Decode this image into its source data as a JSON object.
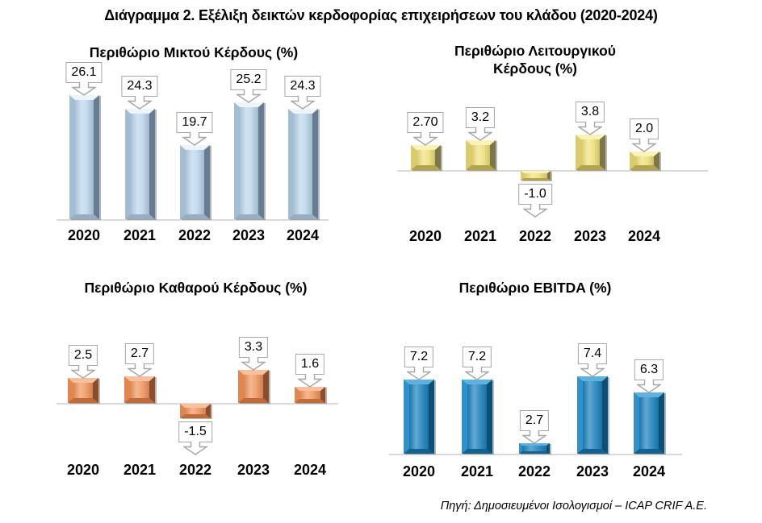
{
  "page": {
    "title": "Διάγραμμα 2. Εξέλιξη δεικτών κερδοφορίας επιχειρήσεων του κλάδου (2020-2024)",
    "source": "Πηγή: Δημοσιευμένοι Ισολογισμοί – ICAP CRIF A.E."
  },
  "chart_data": [
    {
      "id": "gross-profit-margin",
      "type": "bar",
      "title": "Περιθώριο Μικτού Κέρδους (%)",
      "categories": [
        "2020",
        "2021",
        "2022",
        "2023",
        "2024"
      ],
      "values": [
        26.1,
        24.3,
        19.7,
        25.2,
        24.3
      ],
      "labels": [
        "26.1",
        "24.3",
        "19.7",
        "25.2",
        "24.3"
      ],
      "ylim": [
        10,
        28
      ],
      "grid": false,
      "legend": "none",
      "data_labels": "callout-down-arrow",
      "colors": {
        "face": "#BDD7EE",
        "top": "#EDF5FC",
        "left": "#A3BDD4",
        "right": "#667C92",
        "bottom": "#97ADC2"
      }
    },
    {
      "id": "operating-profit-margin",
      "type": "bar",
      "title": "Περιθώριο Λειτουργικού Κέρδους (%)",
      "categories": [
        "2020",
        "2021",
        "2022",
        "2023",
        "2024"
      ],
      "values": [
        2.7,
        3.2,
        -1.0,
        3.8,
        2.0
      ],
      "labels": [
        "2.70",
        "3.2",
        "-1.0",
        "3.8",
        "2.0"
      ],
      "ylim": [
        -2,
        4
      ],
      "grid": false,
      "legend": "none",
      "data_labels": "callout-down-arrow",
      "colors": {
        "face": "#F0E17E",
        "top": "#FAF3B8",
        "left": "#DCCB69",
        "right": "#7C764D",
        "bottom": "#B3A54D"
      }
    },
    {
      "id": "net-profit-margin",
      "type": "bar",
      "title": "Περιθώριο Καθαρού Κέρδους (%)",
      "categories": [
        "2020",
        "2021",
        "2022",
        "2023",
        "2024"
      ],
      "values": [
        2.5,
        2.7,
        -1.5,
        3.3,
        1.6
      ],
      "labels": [
        "2.5",
        "2.7",
        "-1.5",
        "3.3",
        "1.6"
      ],
      "ylim": [
        -2,
        4
      ],
      "grid": false,
      "legend": "none",
      "data_labels": "callout-down-arrow",
      "colors": {
        "face": "#F09760",
        "top": "#F8C09C",
        "left": "#E5854B",
        "right": "#8A4E2E",
        "bottom": "#C06C3A"
      }
    },
    {
      "id": "ebitda-margin",
      "type": "bar",
      "title": "Περιθώριο EBITDA (%)",
      "categories": [
        "2020",
        "2021",
        "2022",
        "2023",
        "2024"
      ],
      "values": [
        7.2,
        7.2,
        2.7,
        7.4,
        6.3
      ],
      "labels": [
        "7.2",
        "7.2",
        "2.7",
        "7.4",
        "6.3"
      ],
      "ylim": [
        2,
        8
      ],
      "grid": false,
      "legend": "none",
      "data_labels": "callout-down-arrow",
      "colors": {
        "face": "#1F83BE",
        "top": "#5FB2E0",
        "left": "#2E93CD",
        "right": "#0C4F74",
        "bottom": "#13618F"
      }
    }
  ],
  "style": {
    "callout_border": "#A6A6A6",
    "axis_line": "#D9D9D9",
    "text": "#000000",
    "background": "#FFFFFF"
  }
}
